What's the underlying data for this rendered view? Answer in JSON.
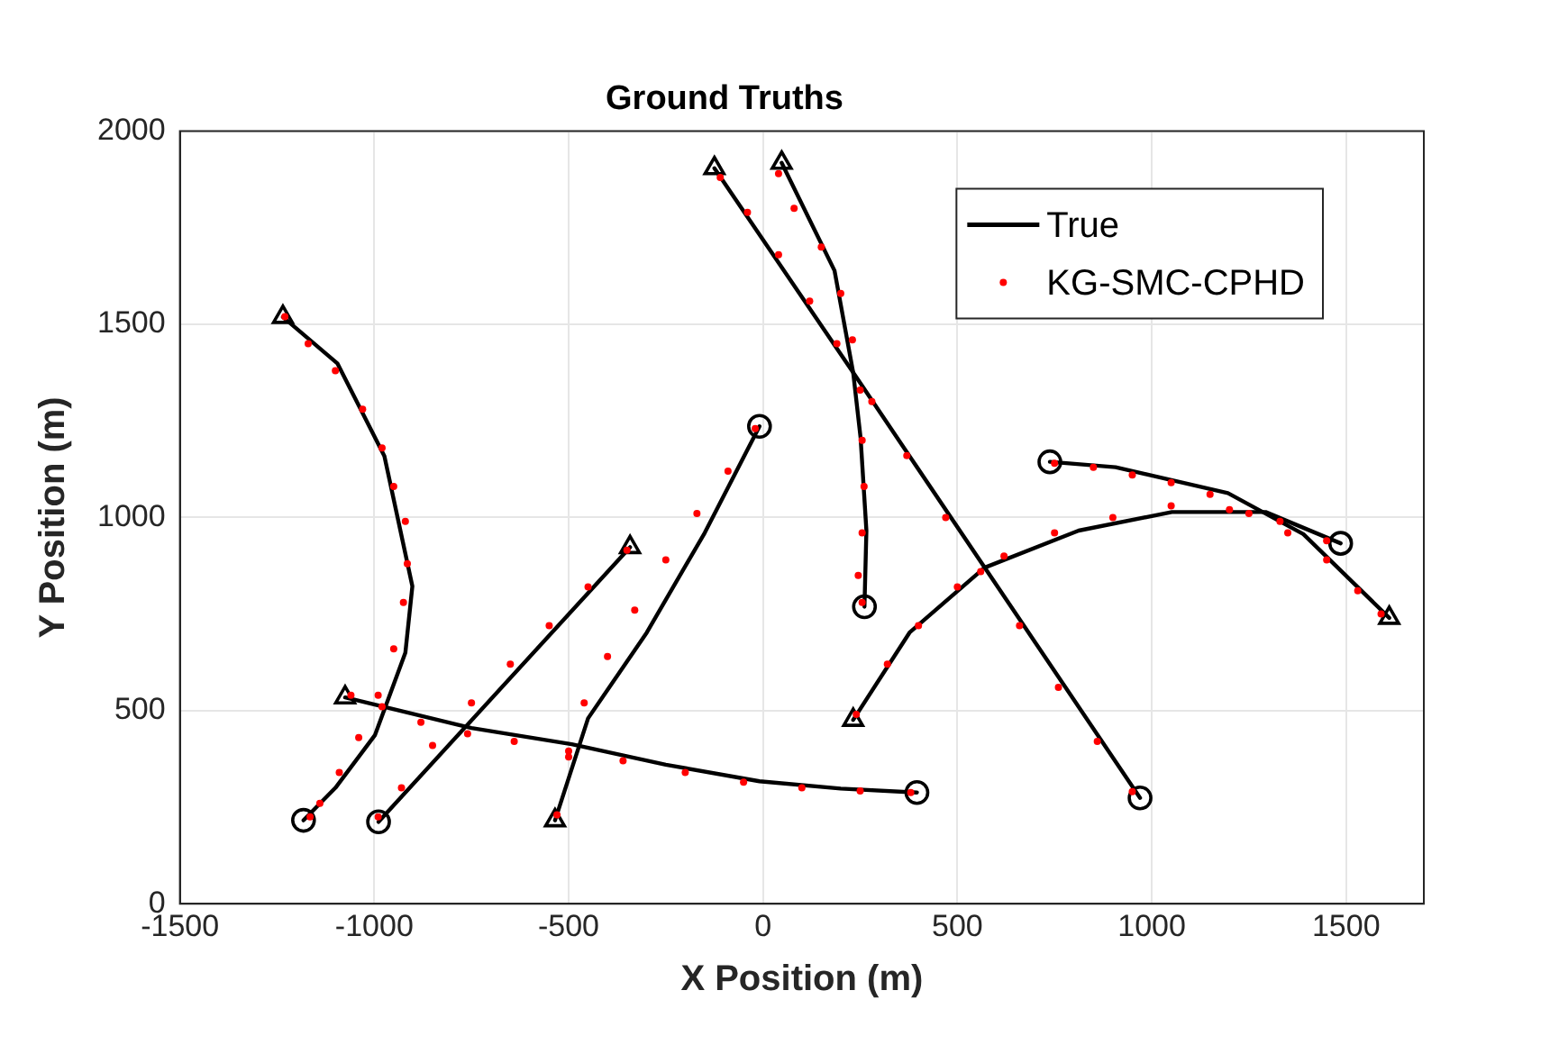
{
  "chart_data": {
    "type": "line",
    "title": "Ground Truths",
    "xlabel": "X Position (m)",
    "ylabel": "Y Position (m)",
    "xlim": [
      -1500,
      1700
    ],
    "xticks": [
      -1500,
      -1000,
      -500,
      0,
      500,
      1000,
      1500
    ],
    "ylim": [
      0,
      2000
    ],
    "yticks": [
      0,
      500,
      1000,
      1500,
      2000
    ],
    "grid": true,
    "legend": "top right",
    "series": [
      {
        "name": "True",
        "type": "line",
        "color": "#000000",
        "marker": "none",
        "line_style": "solid",
        "x": [
          -1235,
          -1095,
          -974,
          -902,
          -920,
          -998,
          -1100,
          -1182
        ],
        "values": [
          1519,
          1399,
          1159,
          822,
          650,
          437,
          300,
          216
        ]
      },
      {
        "type": "line",
        "color": "#000000",
        "marker": "none",
        "line_style": "solid",
        "x": [
          -1075,
          -750,
          -492,
          -250,
          -9,
          200,
          396
        ],
        "values": [
          534,
          455,
          413,
          360,
          317,
          298,
          288
        ]
      },
      {
        "type": "line",
        "color": "#000000",
        "marker": "none",
        "line_style": "solid",
        "x": [
          -342,
          -989
        ],
        "values": [
          923,
          212
        ]
      },
      {
        "type": "line",
        "color": "#000000",
        "marker": "none",
        "line_style": "solid",
        "x": [
          -535,
          -450,
          -299,
          -150,
          -9
        ],
        "values": [
          216,
          480,
          702,
          960,
          1236
        ]
      },
      {
        "type": "line",
        "color": "#000000",
        "marker": "none",
        "line_style": "solid",
        "x": [
          -125,
          232,
          970
        ],
        "values": [
          1904,
          1375,
          274
        ]
      },
      {
        "type": "line",
        "color": "#000000",
        "marker": "none",
        "line_style": "solid",
        "x": [
          48,
          184,
          232,
          251,
          266,
          261
        ],
        "values": [
          1918,
          1639,
          1375,
          1207,
          966,
          769
        ]
      },
      {
        "type": "line",
        "color": "#000000",
        "marker": "none",
        "line_style": "solid",
        "x": [
          232,
          377,
          570,
          812,
          1052,
          1293,
          1486
        ],
        "values": [
          476,
          702,
          870,
          966,
          1014,
          1014,
          933
        ]
      },
      {
        "type": "line",
        "color": "#000000",
        "marker": "none",
        "line_style": "solid",
        "x": [
          738,
          907,
          1196,
          1390,
          1611
        ],
        "values": [
          1144,
          1130,
          1063,
          957,
          740
        ]
      },
      {
        "name": "KG-SMC-CPHD",
        "type": "scatter",
        "color": "#ff0000",
        "marker": "circle",
        "x": [
          -1230,
          -1170,
          -1100,
          -1030,
          -980,
          -950,
          -920,
          -915,
          -925,
          -950,
          -990,
          -1040,
          -1090,
          -1140,
          -1165,
          -1060,
          -980,
          -880,
          -760,
          -640,
          -500,
          -360,
          -200,
          -50,
          100,
          250,
          380,
          -350,
          -450,
          -550,
          -650,
          -750,
          -850,
          -930,
          -990,
          -530,
          -500,
          -460,
          -400,
          -330,
          -250,
          -170,
          -90,
          -20,
          -110,
          -40,
          40,
          120,
          190,
          280,
          370,
          470,
          560,
          660,
          760,
          860,
          950,
          40,
          80,
          150,
          200,
          230,
          250,
          255,
          260,
          255,
          245,
          255,
          240,
          320,
          400,
          500,
          620,
          750,
          900,
          1050,
          1200,
          1330,
          1450,
          750,
          850,
          950,
          1050,
          1150,
          1250,
          1350,
          1450,
          1530,
          1590
        ],
        "values": [
          1520,
          1450,
          1380,
          1280,
          1180,
          1080,
          990,
          880,
          780,
          660,
          540,
          430,
          340,
          260,
          225,
          540,
          510,
          470,
          440,
          420,
          395,
          370,
          340,
          315,
          300,
          292,
          288,
          915,
          820,
          720,
          620,
          520,
          410,
          300,
          225,
          230,
          380,
          520,
          640,
          760,
          890,
          1010,
          1120,
          1230,
          1880,
          1790,
          1680,
          1560,
          1450,
          1300,
          1160,
          1000,
          860,
          720,
          560,
          420,
          290,
          1890,
          1800,
          1700,
          1580,
          1460,
          1330,
          1200,
          1080,
          960,
          850,
          780,
          490,
          620,
          720,
          820,
          900,
          960,
          1000,
          1030,
          1020,
          990,
          940,
          1140,
          1130,
          1110,
          1090,
          1060,
          1010,
          960,
          890,
          810,
          750
        ]
      },
      {
        "type": "scatter",
        "color": "#000000",
        "marker": "triangle",
        "x": [
          -1235,
          -1075,
          -342,
          -535,
          -125,
          48,
          232,
          1611
        ],
        "values": [
          1519,
          534,
          923,
          216,
          1904,
          1918,
          476,
          740
        ]
      },
      {
        "type": "scatter",
        "color": "#000000",
        "marker": "circle",
        "x": [
          -1182,
          396,
          -989,
          -9,
          970,
          261,
          1486,
          738
        ],
        "values": [
          216,
          288,
          212,
          1236,
          274,
          769,
          933,
          1144
        ]
      }
    ]
  }
}
